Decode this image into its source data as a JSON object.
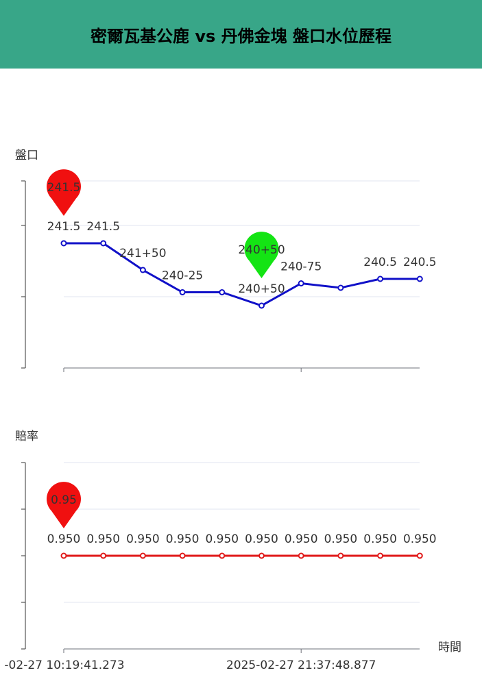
{
  "header": {
    "title": "密爾瓦基公鹿 vs 丹佛金塊 盤口水位歷程"
  },
  "chart_data": [
    {
      "type": "line",
      "y_axis_label": "盤口",
      "categories": [
        null,
        null,
        null,
        null,
        null,
        null,
        null,
        null,
        null,
        null
      ],
      "ylim": [
        238,
        243.25
      ],
      "yticks": [
        238,
        240,
        242,
        243.25
      ],
      "series": [
        {
          "color": "#1010c8",
          "values": [
            241.5,
            241.5,
            240.75,
            240.125,
            240.125,
            239.75,
            240.375,
            240.25,
            240.5,
            240.5
          ],
          "value_labels": [
            "241.5",
            "241.5",
            "241+50",
            "240-25",
            null,
            "240+50",
            "240-75",
            null,
            "240.5",
            "240.5"
          ]
        }
      ],
      "mark_points": [
        {
          "type": "max",
          "label": "241.5",
          "color": "#f01010"
        },
        {
          "type": "min",
          "label": "240+50",
          "color": "#14e414"
        }
      ]
    },
    {
      "type": "line",
      "y_axis_label": "賠率",
      "x_axis_label": "時間",
      "categories": [
        "-02-27 10:19:41.273",
        null,
        null,
        null,
        null,
        null,
        "2025-02-27 21:37:48.877",
        null,
        null,
        null
      ],
      "ylim": [
        0.9,
        1.0
      ],
      "yticks": [
        0.9,
        0.925,
        0.95,
        0.975,
        1.0
      ],
      "series": [
        {
          "color": "#e01818",
          "values": [
            0.95,
            0.95,
            0.95,
            0.95,
            0.95,
            0.95,
            0.95,
            0.95,
            0.95,
            0.95
          ],
          "value_labels": [
            "0.950",
            "0.950",
            "0.950",
            "0.950",
            "0.950",
            "0.950",
            "0.950",
            "0.950",
            "0.950",
            "0.950"
          ]
        }
      ],
      "mark_points": [
        {
          "type": "max",
          "label": "0.95",
          "color": "#f01010"
        }
      ]
    }
  ]
}
